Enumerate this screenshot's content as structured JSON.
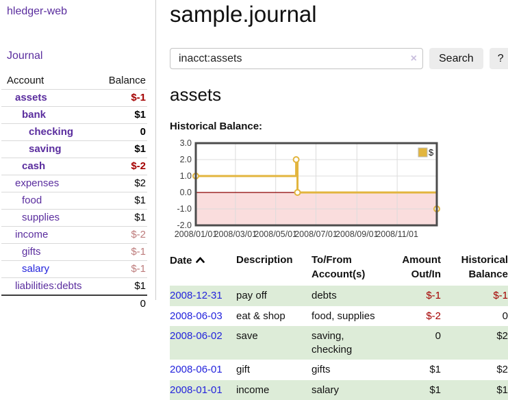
{
  "app": {
    "title": "hledger-web"
  },
  "sidebar": {
    "nav_journal": "Journal",
    "accounts": {
      "header_account": "Account",
      "header_balance": "Balance",
      "rows": [
        {
          "account": "assets",
          "balance": "$-1",
          "indent": 1,
          "bold": true,
          "account_color": "purple",
          "balance_class": "neg-strong"
        },
        {
          "account": "bank",
          "balance": "$1",
          "indent": 2,
          "bold": true,
          "account_color": "purple",
          "balance_class": "plain"
        },
        {
          "account": "checking",
          "balance": "0",
          "indent": 3,
          "bold": true,
          "account_color": "purple",
          "balance_class": "plain"
        },
        {
          "account": "saving",
          "balance": "$1",
          "indent": 3,
          "bold": true,
          "account_color": "purple",
          "balance_class": "plain"
        },
        {
          "account": "cash",
          "balance": "$-2",
          "indent": 2,
          "bold": true,
          "account_color": "purple",
          "balance_class": "neg-strong"
        },
        {
          "account": "expenses",
          "balance": "$2",
          "indent": 1,
          "bold": false,
          "account_color": "purple",
          "balance_class": "plain"
        },
        {
          "account": "food",
          "balance": "$1",
          "indent": 2,
          "bold": false,
          "account_color": "purple",
          "balance_class": "plain"
        },
        {
          "account": "supplies",
          "balance": "$1",
          "indent": 2,
          "bold": false,
          "account_color": "purple",
          "balance_class": "plain"
        },
        {
          "account": "income",
          "balance": "$-2",
          "indent": 1,
          "bold": false,
          "account_color": "purple",
          "balance_class": "neg-soft"
        },
        {
          "account": "gifts",
          "balance": "$-1",
          "indent": 2,
          "bold": false,
          "account_color": "purple",
          "balance_class": "neg-soft"
        },
        {
          "account": "salary",
          "balance": "$-1",
          "indent": 2,
          "bold": false,
          "account_color": "blue",
          "balance_class": "neg-soft"
        },
        {
          "account": "liabilities:debts",
          "balance": "$1",
          "indent": 1,
          "bold": false,
          "account_color": "purple",
          "balance_class": "plain"
        }
      ],
      "total": "0"
    }
  },
  "main": {
    "title": "sample.journal",
    "search": {
      "value": "inacct:assets",
      "clear_icon": "×",
      "button_label": "Search",
      "help_label": "?"
    },
    "account_heading": "assets",
    "chart_label": "Historical Balance:"
  },
  "chart_data": {
    "type": "line",
    "step": true,
    "title": "Historical Balance",
    "series": [
      {
        "name": "$",
        "color": "#e2b53e",
        "points": [
          [
            "2008/01/01",
            1.0
          ],
          [
            "2008/06/01",
            2.0
          ],
          [
            "2008/06/03",
            0.0
          ],
          [
            "2008/12/31",
            -1.0
          ]
        ]
      }
    ],
    "x_range": [
      "2008/01/01",
      "2008/12/31"
    ],
    "x_ticks": [
      "2008/01/01",
      "2008/03/01",
      "2008/05/01",
      "2008/07/01",
      "2008/09/01",
      "2008/11/01"
    ],
    "ylim": [
      -2.0,
      3.0
    ],
    "y_ticks": [
      3.0,
      2.0,
      1.0,
      0.0,
      -1.0,
      -2.0
    ],
    "y_tick_labels": [
      "3.0",
      "2.0",
      "1.0",
      "0.0",
      "-1.0",
      "-2.0"
    ],
    "grid": true,
    "legend_position": "top-right",
    "zero_line_color": "#8b0000",
    "negative_fill": "#fadddd",
    "border_color": "#4c4c4c",
    "grid_color": "#dcdcdc",
    "tick_label_color": "#3d3d3d"
  },
  "transactions": {
    "headers": [
      "Date",
      "Description",
      "To/From Account(s)",
      "Amount Out/In",
      "Historical Balance"
    ],
    "rows": [
      {
        "date": "2008-12-31",
        "description": "pay off",
        "accounts": [
          "debts"
        ],
        "amount": "$-1",
        "amount_class": "neg",
        "balance": "$-1",
        "balance_class": "neg"
      },
      {
        "date": "2008-06-03",
        "description": "eat & shop",
        "accounts": [
          "food, supplies"
        ],
        "amount": "$-2",
        "amount_class": "neg",
        "balance": "0",
        "balance_class": "plain"
      },
      {
        "date": "2008-06-02",
        "description": "save",
        "accounts": [
          "saving,",
          "checking"
        ],
        "amount": "0",
        "amount_class": "plain",
        "balance": "$2",
        "balance_class": "plain"
      },
      {
        "date": "2008-06-01",
        "description": "gift",
        "accounts": [
          "gifts"
        ],
        "amount": "$1",
        "amount_class": "plain",
        "balance": "$2",
        "balance_class": "plain"
      },
      {
        "date": "2008-01-01",
        "description": "income",
        "accounts": [
          "salary"
        ],
        "amount": "$1",
        "amount_class": "plain",
        "balance": "$1",
        "balance_class": "plain"
      }
    ]
  }
}
